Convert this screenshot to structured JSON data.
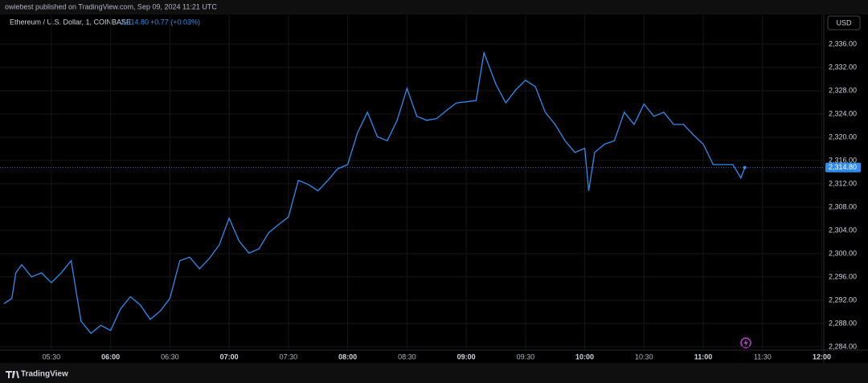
{
  "header": {
    "published": "owiebest published on TradingView.com, Sep 09, 2024 11:21 UTC"
  },
  "legend": {
    "symbol": "Ethereum / U.S. Dollar, 1, COINBASE",
    "change": "+0.77 (+0.03%)"
  },
  "currency": "USD",
  "footer": {
    "brand": "TradingView"
  },
  "chart_data": {
    "type": "line",
    "x": [
      "05:06",
      "05:10",
      "05:12",
      "05:15",
      "05:20",
      "05:25",
      "05:30",
      "05:35",
      "05:40",
      "05:45",
      "05:50",
      "05:55",
      "06:00",
      "06:05",
      "06:10",
      "06:15",
      "06:20",
      "06:25",
      "06:30",
      "06:35",
      "06:40",
      "06:45",
      "06:50",
      "06:55",
      "07:00",
      "07:05",
      "07:10",
      "07:15",
      "07:20",
      "07:25",
      "07:30",
      "07:35",
      "07:40",
      "07:45",
      "07:50",
      "07:55",
      "08:00",
      "08:05",
      "08:10",
      "08:15",
      "08:20",
      "08:25",
      "08:30",
      "08:35",
      "08:40",
      "08:45",
      "08:50",
      "08:55",
      "09:00",
      "09:05",
      "09:09",
      "09:15",
      "09:20",
      "09:25",
      "09:30",
      "09:35",
      "09:40",
      "09:45",
      "09:50",
      "09:55",
      "10:00",
      "10:02",
      "10:05",
      "10:10",
      "10:15",
      "10:20",
      "10:25",
      "10:30",
      "10:35",
      "10:40",
      "10:45",
      "10:50",
      "10:55",
      "11:00",
      "11:05",
      "11:10",
      "11:15",
      "11:19",
      "11:21"
    ],
    "series": [
      {
        "name": "Ethereum / U.S. Dollar",
        "color": "#2f8cf0",
        "values": [
          2291.4,
          2292.3,
          2296.7,
          2298.1,
          2296,
          2296.7,
          2295,
          2296.7,
          2298.8,
          2288.4,
          2286.3,
          2287.7,
          2286.8,
          2290.5,
          2292.6,
          2291.2,
          2288.7,
          2290.1,
          2292.3,
          2298.8,
          2299.4,
          2297.4,
          2299.2,
          2301.5,
          2306.1,
          2302.2,
          2300.1,
          2300.8,
          2303.6,
          2305,
          2306.3,
          2312.6,
          2311.9,
          2310.8,
          2312.6,
          2314.6,
          2315.3,
          2320.8,
          2324.3,
          2320.1,
          2319.4,
          2322.9,
          2328.4,
          2323.6,
          2322.9,
          2323.2,
          2324.6,
          2325.9,
          2326.1,
          2326.3,
          2334.5,
          2329.1,
          2325.9,
          2328.1,
          2329.8,
          2328.7,
          2324.3,
          2322.2,
          2319.4,
          2317.4,
          2318.1,
          2310.8,
          2317.4,
          2318.8,
          2319.4,
          2324.3,
          2322.2,
          2325.7,
          2323.6,
          2324.3,
          2322.2,
          2322.2,
          2320.4,
          2318.8,
          2315.3,
          2315.3,
          2315.3,
          2313,
          2314.8
        ]
      }
    ],
    "last_price": {
      "value": 2314.8,
      "label": "2,314.80"
    },
    "xlim": [
      "05:04",
      "12:01"
    ],
    "xticks": [
      "05:30",
      "06:00",
      "06:30",
      "07:00",
      "07:30",
      "08:00",
      "08:30",
      "09:00",
      "09:30",
      "10:00",
      "10:30",
      "11:00",
      "11:30",
      "12:00"
    ],
    "ylim": [
      2281.5,
      2341.1
    ],
    "yticks": [
      {
        "value": 2284,
        "label": "2,284.00"
      },
      {
        "value": 2288,
        "label": "2,288.00"
      },
      {
        "value": 2292,
        "label": "2,292.00"
      },
      {
        "value": 2296,
        "label": "2,296.00"
      },
      {
        "value": 2300,
        "label": "2,300.00"
      },
      {
        "value": 2304,
        "label": "2,304.00"
      },
      {
        "value": 2308,
        "label": "2,308.00"
      },
      {
        "value": 2312,
        "label": "2,312.00"
      },
      {
        "value": 2316,
        "label": "2,316.00"
      },
      {
        "value": 2320,
        "label": "2,320.00"
      },
      {
        "value": 2324,
        "label": "2,324.00"
      },
      {
        "value": 2328,
        "label": "2,328.00"
      },
      {
        "value": 2332,
        "label": "2,332.00"
      },
      {
        "value": 2336,
        "label": "2,336.00"
      }
    ],
    "grid": true
  }
}
